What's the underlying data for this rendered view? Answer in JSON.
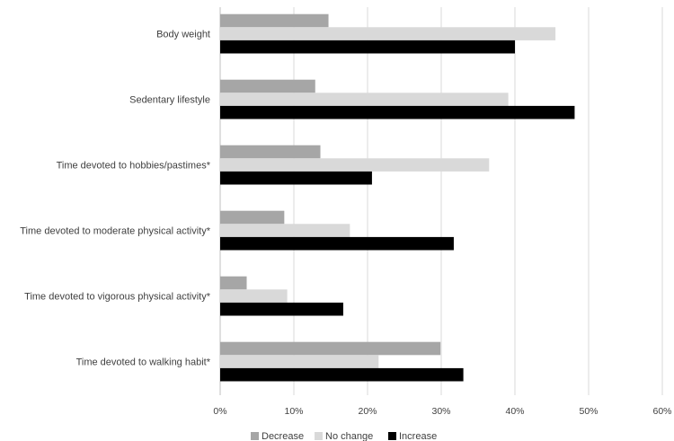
{
  "chart_data": {
    "type": "bar",
    "orientation": "horizontal",
    "categories": [
      "Body weight",
      "Sedentary lifestyle",
      "Time devoted to hobbies/pastimes*",
      "Time devoted to moderate physical activity*",
      "Time devoted to vigorous physical activity*",
      "Time devoted to walking habit*"
    ],
    "series": [
      {
        "name": "Decrease",
        "color": "#a6a6a6",
        "values": [
          14.7,
          12.9,
          13.6,
          8.7,
          3.6,
          29.9
        ]
      },
      {
        "name": "No change",
        "color": "#d9d9d9",
        "values": [
          45.5,
          39.1,
          36.5,
          17.6,
          9.1,
          21.5
        ]
      },
      {
        "name": "Increase",
        "color": "#000000",
        "values": [
          40.0,
          48.1,
          20.6,
          31.7,
          16.7,
          33.0
        ]
      }
    ],
    "xlim": [
      0,
      60
    ],
    "xticks": [
      "0%",
      "10%",
      "20%",
      "30%",
      "40%",
      "50%",
      "60%"
    ],
    "value_unit": "%",
    "grid": "vertical",
    "legend_position": "bottom"
  }
}
